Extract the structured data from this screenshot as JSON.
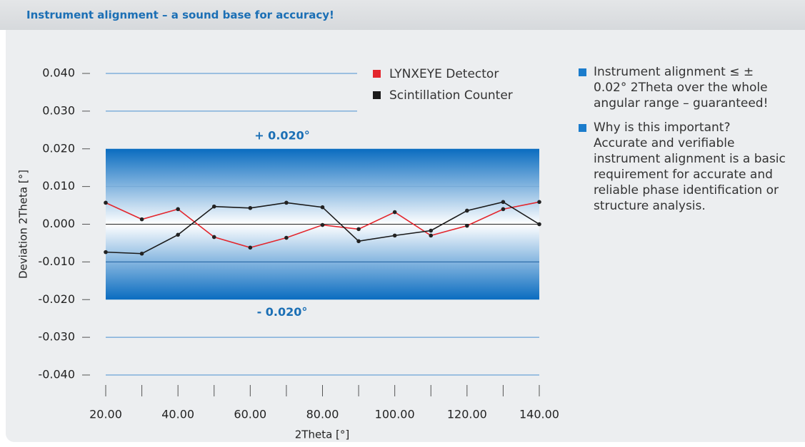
{
  "header": {
    "title": "Instrument alignment – a sound base for accuracy!"
  },
  "chart_data": {
    "type": "line",
    "y_label": "Deviation 2Theta [°]",
    "x_label": "2Theta [°]",
    "x": [
      20,
      30,
      40,
      50,
      60,
      70,
      80,
      90,
      100,
      110,
      120,
      130,
      140
    ],
    "series": [
      {
        "name": "LYNXEYE Detector",
        "color": "#e3262d",
        "values": [
          0.0057,
          0.0013,
          0.004,
          -0.0034,
          -0.0062,
          -0.0036,
          -0.0002,
          -0.0013,
          0.0032,
          -0.003,
          -0.0004,
          0.004,
          0.0059
        ]
      },
      {
        "name": "Scintillation Counter",
        "color": "#1a1a1a",
        "values": [
          -0.0074,
          -0.0078,
          -0.0028,
          0.0047,
          0.0043,
          0.0057,
          0.0045,
          -0.0045,
          -0.003,
          -0.0017,
          0.0036,
          0.0059,
          0
        ]
      }
    ],
    "xlim": [
      20,
      140
    ],
    "ylim": [
      -0.04,
      0.04
    ],
    "xticks": [
      {
        "value": 20,
        "label": "20.00"
      },
      {
        "value": 40,
        "label": "40.00"
      },
      {
        "value": 60,
        "label": "60.00"
      },
      {
        "value": 80,
        "label": "80.00"
      },
      {
        "value": 100,
        "label": "100.00"
      },
      {
        "value": 120,
        "label": "120.00"
      },
      {
        "value": 140,
        "label": "140.00"
      }
    ],
    "xminor_ticks": [
      20,
      30,
      40,
      50,
      60,
      70,
      80,
      90,
      100,
      110,
      120,
      130,
      140
    ],
    "yticks": [
      {
        "value": 0.04,
        "label": "0.040"
      },
      {
        "value": 0.03,
        "label": "0.030"
      },
      {
        "value": 0.02,
        "label": "0.020"
      },
      {
        "value": 0.01,
        "label": "0.010"
      },
      {
        "value": 0,
        "label": "0.000"
      },
      {
        "value": -0.01,
        "label": "-0.010"
      },
      {
        "value": -0.02,
        "label": "-0.020"
      },
      {
        "value": -0.03,
        "label": "-0.030"
      },
      {
        "value": -0.04,
        "label": "-0.040"
      }
    ],
    "band": {
      "upper": 0.02,
      "lower": -0.02,
      "upper_label": "+ 0.020°",
      "lower_label": "- 0.020°"
    },
    "grid": true
  },
  "bullets": [
    "Instrument alignment ≤ ± 0.02° 2Theta over the whole angular range – guaranteed!",
    "Why is this important? Accurate and verifiable instrument alignment is a basic requirement for accurate and reliable phase identification or structure analysis."
  ]
}
